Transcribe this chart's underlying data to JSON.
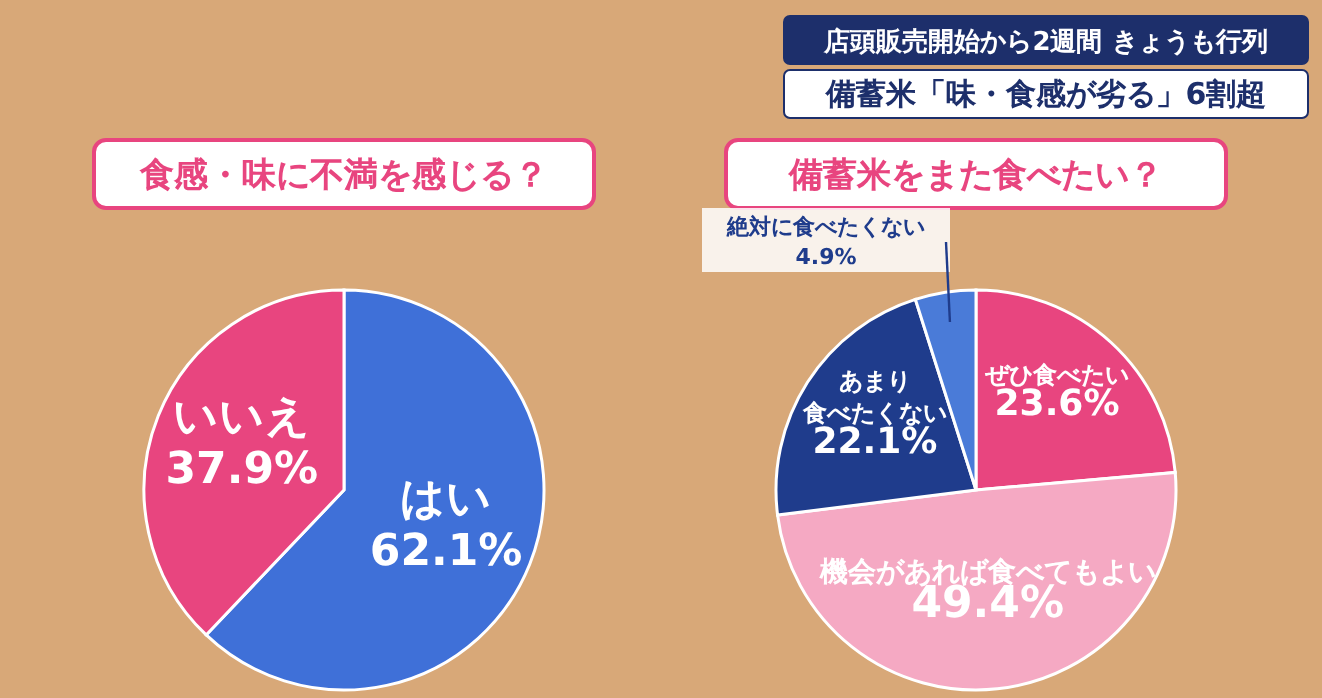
{
  "chart_data": [
    {
      "type": "pie",
      "title": "食感・味に不満を感じる？",
      "annotations": [
        "店頭販売開始から2週間 きょうも行列",
        "備蓄米「味・食感が劣る」6割超"
      ],
      "categories": [
        "はい",
        "いいえ"
      ],
      "values": [
        62.1,
        37.9
      ],
      "value_labels": [
        "62.1%",
        "37.9%"
      ],
      "colors": [
        "#3f70d8",
        "#e8457f"
      ]
    },
    {
      "type": "pie",
      "title": "備蓄米をまた食べたい？",
      "categories": [
        "ぜひ食べたい",
        "機会があれば食べてもよい",
        "あまり食べたくない",
        "絶対に食べたくない"
      ],
      "values": [
        23.6,
        49.4,
        22.1,
        4.9
      ],
      "value_labels": [
        "23.6%",
        "49.4%",
        "22.1%",
        "4.9%"
      ],
      "colors": [
        "#e8457f",
        "#f5a9c3",
        "#1f3c8c",
        "#4a7bd8"
      ]
    }
  ]
}
